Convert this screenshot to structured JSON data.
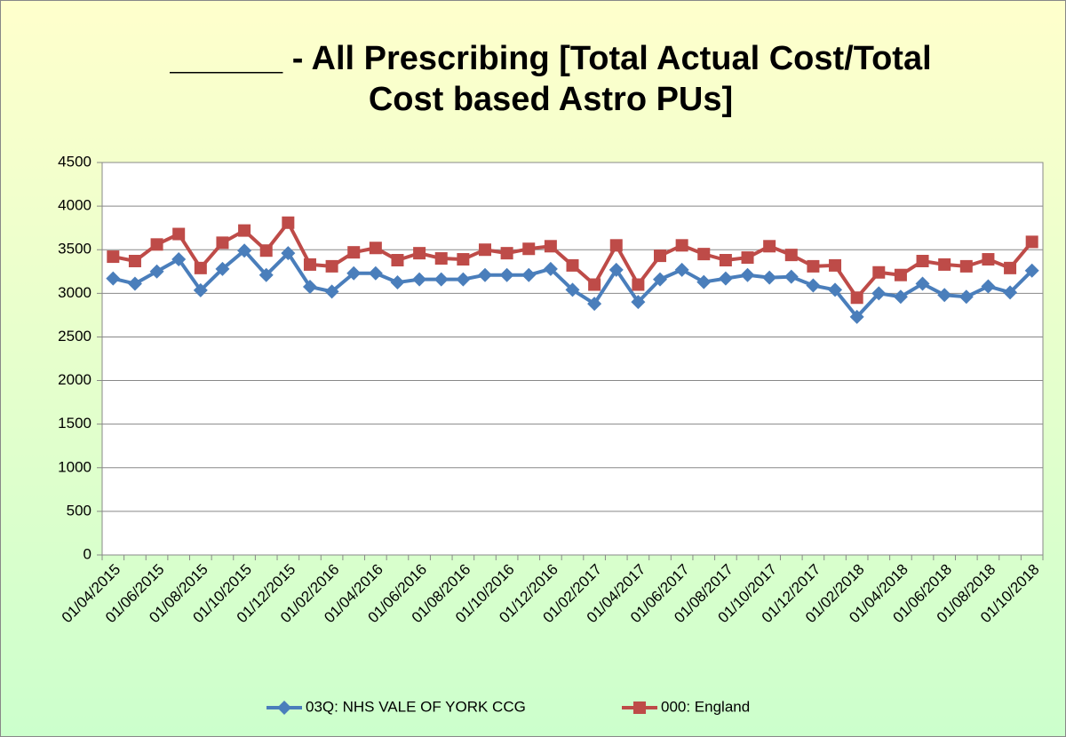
{
  "chart_data": {
    "type": "line",
    "title": [
      "______ - All Prescribing [Total Actual Cost/Total",
      "Cost based Astro PUs]"
    ],
    "categories": [
      "01/04/2015",
      null,
      "01/06/2015",
      null,
      "01/08/2015",
      null,
      "01/10/2015",
      null,
      "01/12/2015",
      null,
      "01/02/2016",
      null,
      "01/04/2016",
      null,
      "01/06/2016",
      null,
      "01/08/2016",
      null,
      "01/10/2016",
      null,
      "01/12/2016",
      null,
      "01/02/2017",
      null,
      "01/04/2017",
      null,
      "01/06/2017",
      null,
      "01/08/2017",
      null,
      "01/10/2017",
      null,
      "01/12/2017",
      null,
      "01/02/2018",
      null,
      "01/04/2018",
      null,
      "01/06/2018",
      null,
      "01/08/2018",
      null,
      "01/10/2018"
    ],
    "series": [
      {
        "name": "03Q: NHS VALE OF YORK CCG",
        "color": "#4a7ebb",
        "marker": "diamond",
        "values": [
          3170,
          3110,
          3250,
          3390,
          3035,
          3280,
          3490,
          3210,
          3460,
          3075,
          3020,
          3230,
          3230,
          3125,
          3160,
          3160,
          3160,
          3210,
          3210,
          3210,
          3280,
          3040,
          2880,
          3270,
          2900,
          3160,
          3270,
          3130,
          3170,
          3210,
          3180,
          3190,
          3090,
          3040,
          2730,
          3000,
          2960,
          3110,
          2980,
          2960,
          3080,
          3010,
          3260
        ]
      },
      {
        "name": "000: England",
        "color": "#be4b48",
        "marker": "square",
        "values": [
          3420,
          3370,
          3560,
          3680,
          3290,
          3580,
          3720,
          3490,
          3810,
          3330,
          3310,
          3470,
          3520,
          3380,
          3460,
          3400,
          3390,
          3500,
          3460,
          3510,
          3540,
          3320,
          3100,
          3550,
          3100,
          3430,
          3550,
          3450,
          3380,
          3410,
          3540,
          3440,
          3310,
          3320,
          2950,
          3240,
          3210,
          3370,
          3330,
          3310,
          3390,
          3290,
          3590
        ]
      }
    ],
    "ylim": [
      0,
      4500
    ],
    "yticks": [
      0,
      500,
      1000,
      1500,
      2000,
      2500,
      3000,
      3500,
      4000,
      4500
    ],
    "grid": true,
    "legend": "bottom"
  }
}
